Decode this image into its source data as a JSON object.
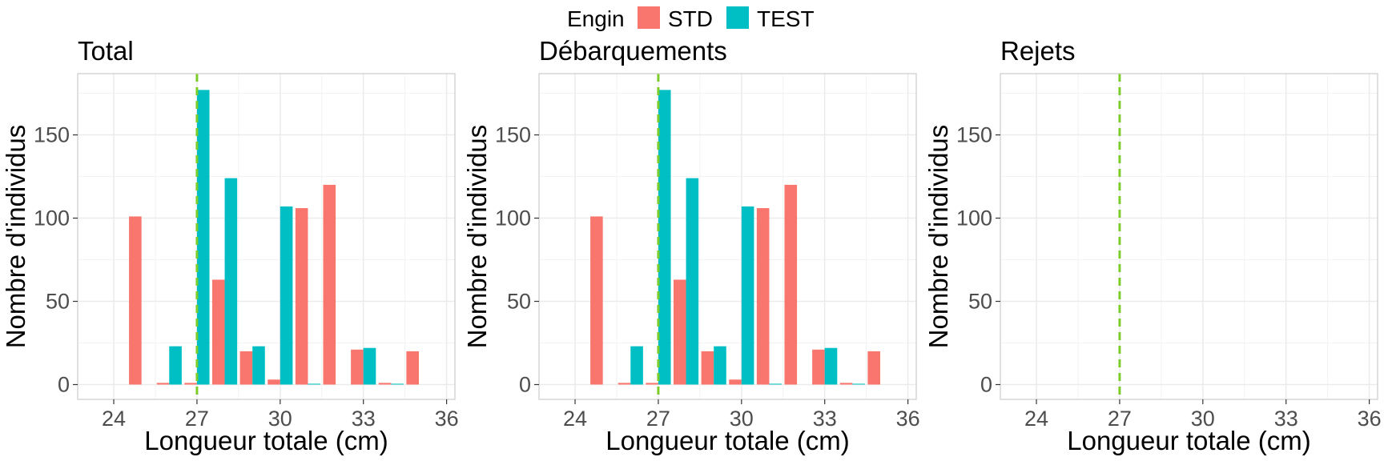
{
  "chart_data": {
    "type": "bar",
    "legend": {
      "title": "Engin",
      "position": "top",
      "entries": [
        {
          "name": "STD",
          "color": "#F8766D"
        },
        {
          "name": "TEST",
          "color": "#00BFC4"
        }
      ]
    },
    "grid": true,
    "reference_line": {
      "x": 27,
      "color": "#7CCD2A",
      "style": "dashed"
    },
    "xlim": [
      22.7,
      36.3
    ],
    "ylim": [
      -8.9,
      186.8
    ],
    "x_ticks": [
      "24",
      "27",
      "30",
      "33",
      "36"
    ],
    "y_ticks": [
      "0",
      "50",
      "100",
      "150"
    ],
    "xlabel": "Longueur totale (cm)",
    "ylabel": "Nombre d'individus",
    "panels": [
      {
        "title": "Total",
        "series": [
          {
            "name": "STD",
            "x": [
              25,
              26,
              27,
              28,
              29,
              30,
              31,
              32,
              33,
              34,
              35
            ],
            "values": [
              101,
              1,
              1,
              63,
              20,
              3,
              106,
              120,
              21,
              1,
              20
            ]
          },
          {
            "name": "TEST",
            "x": [
              26,
              27,
              28,
              29,
              30,
              31,
              33,
              34
            ],
            "values": [
              23,
              177,
              124,
              23,
              107,
              0.5,
              22,
              0.5
            ]
          }
        ]
      },
      {
        "title": "Débarquements",
        "series": [
          {
            "name": "STD",
            "x": [
              25,
              26,
              27,
              28,
              29,
              30,
              31,
              32,
              33,
              34,
              35
            ],
            "values": [
              101,
              1,
              1,
              63,
              20,
              3,
              106,
              120,
              21,
              1,
              20
            ]
          },
          {
            "name": "TEST",
            "x": [
              26,
              27,
              28,
              29,
              30,
              31,
              33,
              34
            ],
            "values": [
              23,
              177,
              124,
              23,
              107,
              0.5,
              22,
              0.5
            ]
          }
        ]
      },
      {
        "title": "Rejets",
        "series": [
          {
            "name": "STD",
            "x": [],
            "values": []
          },
          {
            "name": "TEST",
            "x": [],
            "values": []
          }
        ]
      }
    ]
  }
}
